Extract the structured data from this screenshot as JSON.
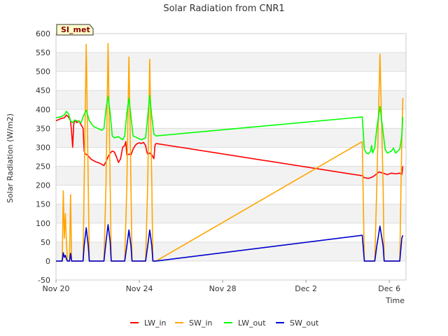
{
  "chart_data": {
    "type": "line",
    "title": "Solar Radiation from CNR1",
    "xlabel": "Time",
    "ylabel": "Solar Radiation (W/m2)",
    "badge": "SI_met",
    "xlim": [
      0,
      16.8
    ],
    "ylim": [
      -50,
      600
    ],
    "y_ticks": [
      -50,
      0,
      50,
      100,
      150,
      200,
      250,
      300,
      350,
      400,
      450,
      500,
      550,
      600
    ],
    "x_ticks": [
      {
        "value": 0,
        "label": "Nov 20"
      },
      {
        "value": 4,
        "label": "Nov 24"
      },
      {
        "value": 8,
        "label": "Nov 28"
      },
      {
        "value": 12,
        "label": "Dec 2"
      },
      {
        "value": 16,
        "label": "Dec 6"
      }
    ],
    "series": [
      {
        "name": "LW_in",
        "color": "#ff0000",
        "points": [
          [
            0,
            370
          ],
          [
            0.2,
            375
          ],
          [
            0.4,
            378
          ],
          [
            0.5,
            385
          ],
          [
            0.6,
            380
          ],
          [
            0.7,
            370
          ],
          [
            0.75,
            340
          ],
          [
            0.8,
            300
          ],
          [
            0.85,
            360
          ],
          [
            0.9,
            372
          ],
          [
            1.0,
            365
          ],
          [
            1.1,
            370
          ],
          [
            1.2,
            360
          ],
          [
            1.3,
            350
          ],
          [
            1.35,
            290
          ],
          [
            1.4,
            283
          ],
          [
            1.5,
            280
          ],
          [
            1.7,
            268
          ],
          [
            1.9,
            262
          ],
          [
            2.1,
            258
          ],
          [
            2.3,
            252
          ],
          [
            2.4,
            262
          ],
          [
            2.5,
            275
          ],
          [
            2.6,
            285
          ],
          [
            2.7,
            290
          ],
          [
            2.8,
            288
          ],
          [
            2.9,
            275
          ],
          [
            3.0,
            260
          ],
          [
            3.1,
            270
          ],
          [
            3.2,
            300
          ],
          [
            3.3,
            305
          ],
          [
            3.35,
            315
          ],
          [
            3.4,
            280
          ],
          [
            3.5,
            282
          ],
          [
            3.6,
            280
          ],
          [
            3.7,
            295
          ],
          [
            3.8,
            305
          ],
          [
            3.9,
            310
          ],
          [
            4.0,
            312
          ],
          [
            4.1,
            310
          ],
          [
            4.2,
            313
          ],
          [
            4.3,
            305
          ],
          [
            4.35,
            290
          ],
          [
            4.4,
            282
          ],
          [
            4.5,
            285
          ],
          [
            4.6,
            280
          ],
          [
            4.7,
            270
          ],
          [
            4.75,
            305
          ],
          [
            4.8,
            310
          ],
          [
            14.7,
            225
          ],
          [
            14.8,
            220
          ],
          [
            15.0,
            218
          ],
          [
            15.2,
            222
          ],
          [
            15.4,
            230
          ],
          [
            15.5,
            235
          ],
          [
            15.7,
            232
          ],
          [
            15.9,
            228
          ],
          [
            16.1,
            232
          ],
          [
            16.3,
            230
          ],
          [
            16.5,
            232
          ],
          [
            16.6,
            228
          ],
          [
            16.65,
            250
          ]
        ]
      },
      {
        "name": "SW_in",
        "color": "#ffa500",
        "points": [
          [
            0,
            0
          ],
          [
            0.3,
            0
          ],
          [
            0.35,
            185
          ],
          [
            0.4,
            60
          ],
          [
            0.45,
            125
          ],
          [
            0.5,
            50
          ],
          [
            0.55,
            0
          ],
          [
            0.65,
            0
          ],
          [
            0.7,
            175
          ],
          [
            0.75,
            0
          ],
          [
            1.3,
            0
          ],
          [
            1.35,
            200
          ],
          [
            1.45,
            572
          ],
          [
            1.55,
            200
          ],
          [
            1.6,
            0
          ],
          [
            2.3,
            0
          ],
          [
            2.4,
            200
          ],
          [
            2.5,
            574
          ],
          [
            2.6,
            200
          ],
          [
            2.65,
            0
          ],
          [
            3.3,
            0
          ],
          [
            3.4,
            200
          ],
          [
            3.5,
            538
          ],
          [
            3.6,
            200
          ],
          [
            3.65,
            0
          ],
          [
            4.3,
            0
          ],
          [
            4.4,
            200
          ],
          [
            4.5,
            532
          ],
          [
            4.6,
            200
          ],
          [
            4.65,
            0
          ],
          [
            4.8,
            0
          ],
          [
            14.7,
            315
          ],
          [
            14.8,
            0
          ],
          [
            15.3,
            0
          ],
          [
            15.4,
            200
          ],
          [
            15.55,
            546
          ],
          [
            15.7,
            200
          ],
          [
            15.75,
            0
          ],
          [
            16.5,
            0
          ],
          [
            16.6,
            320
          ],
          [
            16.65,
            430
          ]
        ]
      },
      {
        "name": "LW_out",
        "color": "#00ff00",
        "points": [
          [
            0,
            378
          ],
          [
            0.2,
            380
          ],
          [
            0.4,
            385
          ],
          [
            0.5,
            395
          ],
          [
            0.6,
            388
          ],
          [
            0.7,
            370
          ],
          [
            0.8,
            365
          ],
          [
            0.9,
            372
          ],
          [
            1.0,
            370
          ],
          [
            1.1,
            368
          ],
          [
            1.2,
            365
          ],
          [
            1.3,
            380
          ],
          [
            1.45,
            398
          ],
          [
            1.6,
            370
          ],
          [
            1.8,
            355
          ],
          [
            2.0,
            350
          ],
          [
            2.2,
            345
          ],
          [
            2.3,
            350
          ],
          [
            2.4,
            400
          ],
          [
            2.5,
            435
          ],
          [
            2.6,
            390
          ],
          [
            2.7,
            330
          ],
          [
            2.8,
            325
          ],
          [
            3.0,
            328
          ],
          [
            3.2,
            320
          ],
          [
            3.3,
            330
          ],
          [
            3.4,
            390
          ],
          [
            3.5,
            430
          ],
          [
            3.6,
            380
          ],
          [
            3.7,
            330
          ],
          [
            3.9,
            325
          ],
          [
            4.1,
            320
          ],
          [
            4.3,
            325
          ],
          [
            4.4,
            380
          ],
          [
            4.5,
            437
          ],
          [
            4.6,
            380
          ],
          [
            4.7,
            335
          ],
          [
            4.8,
            330
          ],
          [
            14.7,
            380
          ],
          [
            14.8,
            295
          ],
          [
            14.9,
            285
          ],
          [
            15.0,
            283
          ],
          [
            15.1,
            290
          ],
          [
            15.15,
            305
          ],
          [
            15.2,
            285
          ],
          [
            15.3,
            300
          ],
          [
            15.4,
            350
          ],
          [
            15.55,
            408
          ],
          [
            15.7,
            340
          ],
          [
            15.8,
            295
          ],
          [
            15.9,
            285
          ],
          [
            16.1,
            290
          ],
          [
            16.2,
            298
          ],
          [
            16.3,
            285
          ],
          [
            16.5,
            295
          ],
          [
            16.6,
            330
          ],
          [
            16.65,
            380
          ]
        ]
      },
      {
        "name": "SW_out",
        "color": "#0000cd",
        "points": [
          [
            0,
            0
          ],
          [
            0.3,
            0
          ],
          [
            0.35,
            22
          ],
          [
            0.4,
            10
          ],
          [
            0.45,
            15
          ],
          [
            0.5,
            5
          ],
          [
            0.55,
            0
          ],
          [
            0.65,
            0
          ],
          [
            0.7,
            20
          ],
          [
            0.75,
            0
          ],
          [
            1.3,
            0
          ],
          [
            1.35,
            40
          ],
          [
            1.45,
            88
          ],
          [
            1.55,
            40
          ],
          [
            1.6,
            0
          ],
          [
            2.3,
            0
          ],
          [
            2.4,
            50
          ],
          [
            2.5,
            96
          ],
          [
            2.6,
            50
          ],
          [
            2.65,
            0
          ],
          [
            3.3,
            0
          ],
          [
            3.4,
            40
          ],
          [
            3.5,
            82
          ],
          [
            3.6,
            40
          ],
          [
            3.65,
            0
          ],
          [
            4.3,
            0
          ],
          [
            4.4,
            40
          ],
          [
            4.5,
            82
          ],
          [
            4.6,
            40
          ],
          [
            4.65,
            0
          ],
          [
            4.8,
            0
          ],
          [
            14.7,
            68
          ],
          [
            14.8,
            0
          ],
          [
            15.3,
            0
          ],
          [
            15.4,
            40
          ],
          [
            15.55,
            92
          ],
          [
            15.7,
            40
          ],
          [
            15.75,
            0
          ],
          [
            16.5,
            0
          ],
          [
            16.6,
            60
          ],
          [
            16.65,
            68
          ]
        ]
      }
    ],
    "legend_position": "bottom-center"
  }
}
